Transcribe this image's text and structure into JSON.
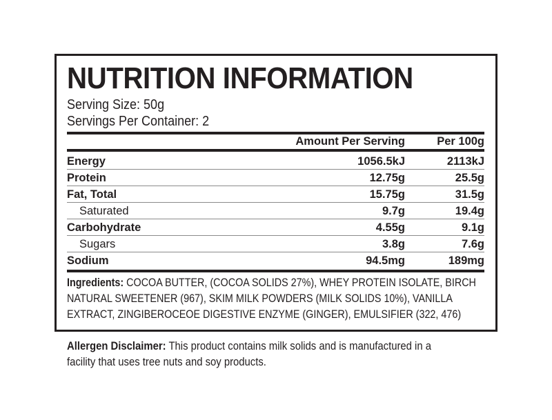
{
  "panel": {
    "title": "NUTRITION INFORMATION",
    "serving_size": "Serving Size: 50g",
    "servings_per_container": "Servings Per Container: 2",
    "table": {
      "header": [
        "Amount Per Serving",
        "Per 100g"
      ],
      "rows": [
        [
          "Energy",
          "1056.5kJ",
          "2113kJ"
        ],
        [
          "Protein",
          "12.75g",
          "25.5g"
        ],
        [
          "Fat, Total",
          "15.75g",
          "31.5g"
        ],
        [
          "Saturated",
          "9.7g",
          "19.4g"
        ],
        [
          "Carbohydrate",
          "4.55g",
          "9.1g"
        ],
        [
          "Sugars",
          "3.8g",
          "7.6g"
        ],
        [
          "Sodium",
          "94.5mg",
          "189mg"
        ]
      ]
    },
    "ingredients": {
      "label": "Ingredients:",
      "lines": [
        "COCOA BUTTER, (COCOA SOLIDS 27%), WHEY PROTEIN ISOLATE, BIRCH",
        "NATURAL SWEETENER (967), SKIM MILK POWDERS (MILK SOLIDS 10%), VANILLA",
        "EXTRACT, ZINGIBEROCEOE DIGESTIVE ENZYME (GINGER), EMULSIFIER (322, 476)"
      ]
    }
  },
  "allergen": {
    "label": "Allergen Disclaimer:",
    "lines": [
      "This product contains milk solids and is manufactured in a",
      "facility that uses tree nuts and soy products."
    ]
  }
}
